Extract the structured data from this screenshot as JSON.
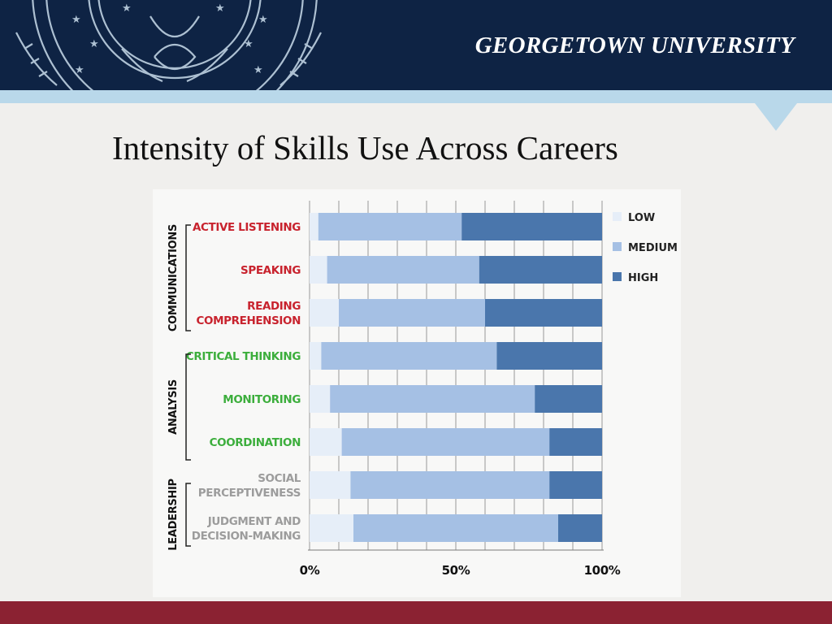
{
  "header": {
    "university": "GEORGETOWN UNIVERSITY"
  },
  "slide": {
    "title": "Intensity of Skills Use Across Careers"
  },
  "colors": {
    "navy": "#0e2344",
    "light_blue": "#b9d8ea",
    "maroon": "#8b2232",
    "low": "#e6eef8",
    "medium": "#a5c0e4",
    "high": "#4a76ac",
    "communications": "#c8232e",
    "analysis": "#3cae3c",
    "leadership": "#9c9c9c"
  },
  "chart_data": {
    "type": "bar",
    "orientation": "horizontal",
    "stacked": true,
    "categories": [
      "ACTIVE LISTENING",
      "SPEAKING",
      "READING COMPREHENSION",
      "CRITICAL THINKING",
      "MONITORING",
      "COORDINATION",
      "SOCIAL PERCEPTIVENESS",
      "JUDGMENT AND DECISION-MAKING"
    ],
    "category_lines": [
      [
        "ACTIVE LISTENING"
      ],
      [
        "SPEAKING"
      ],
      [
        "READING",
        "COMPREHENSION"
      ],
      [
        "CRITICAL THINKING"
      ],
      [
        "MONITORING"
      ],
      [
        "COORDINATION"
      ],
      [
        "SOCIAL",
        "PERCEPTIVENESS"
      ],
      [
        "JUDGMENT AND",
        "DECISION-MAKING"
      ]
    ],
    "groups": [
      {
        "name": "COMMUNICATIONS",
        "categories": [
          0,
          1,
          2
        ],
        "color": "#c8232e"
      },
      {
        "name": "ANALYSIS",
        "categories": [
          3,
          4,
          5
        ],
        "color": "#3cae3c"
      },
      {
        "name": "LEADERSHIP",
        "categories": [
          6,
          7
        ],
        "color": "#9c9c9c"
      }
    ],
    "series": [
      {
        "name": "LOW",
        "color": "#e6eef8",
        "values": [
          3,
          6,
          10,
          4,
          7,
          11,
          14,
          15
        ]
      },
      {
        "name": "MEDIUM",
        "color": "#a5c0e4",
        "values": [
          49,
          52,
          50,
          60,
          70,
          71,
          68,
          70
        ]
      },
      {
        "name": "HIGH",
        "color": "#4a76ac",
        "values": [
          48,
          42,
          40,
          36,
          23,
          18,
          18,
          15
        ]
      }
    ],
    "xlim": [
      0,
      100
    ],
    "x_ticks": [
      "0%",
      "50%",
      "100%"
    ],
    "grid": true,
    "legend_position": "right"
  }
}
